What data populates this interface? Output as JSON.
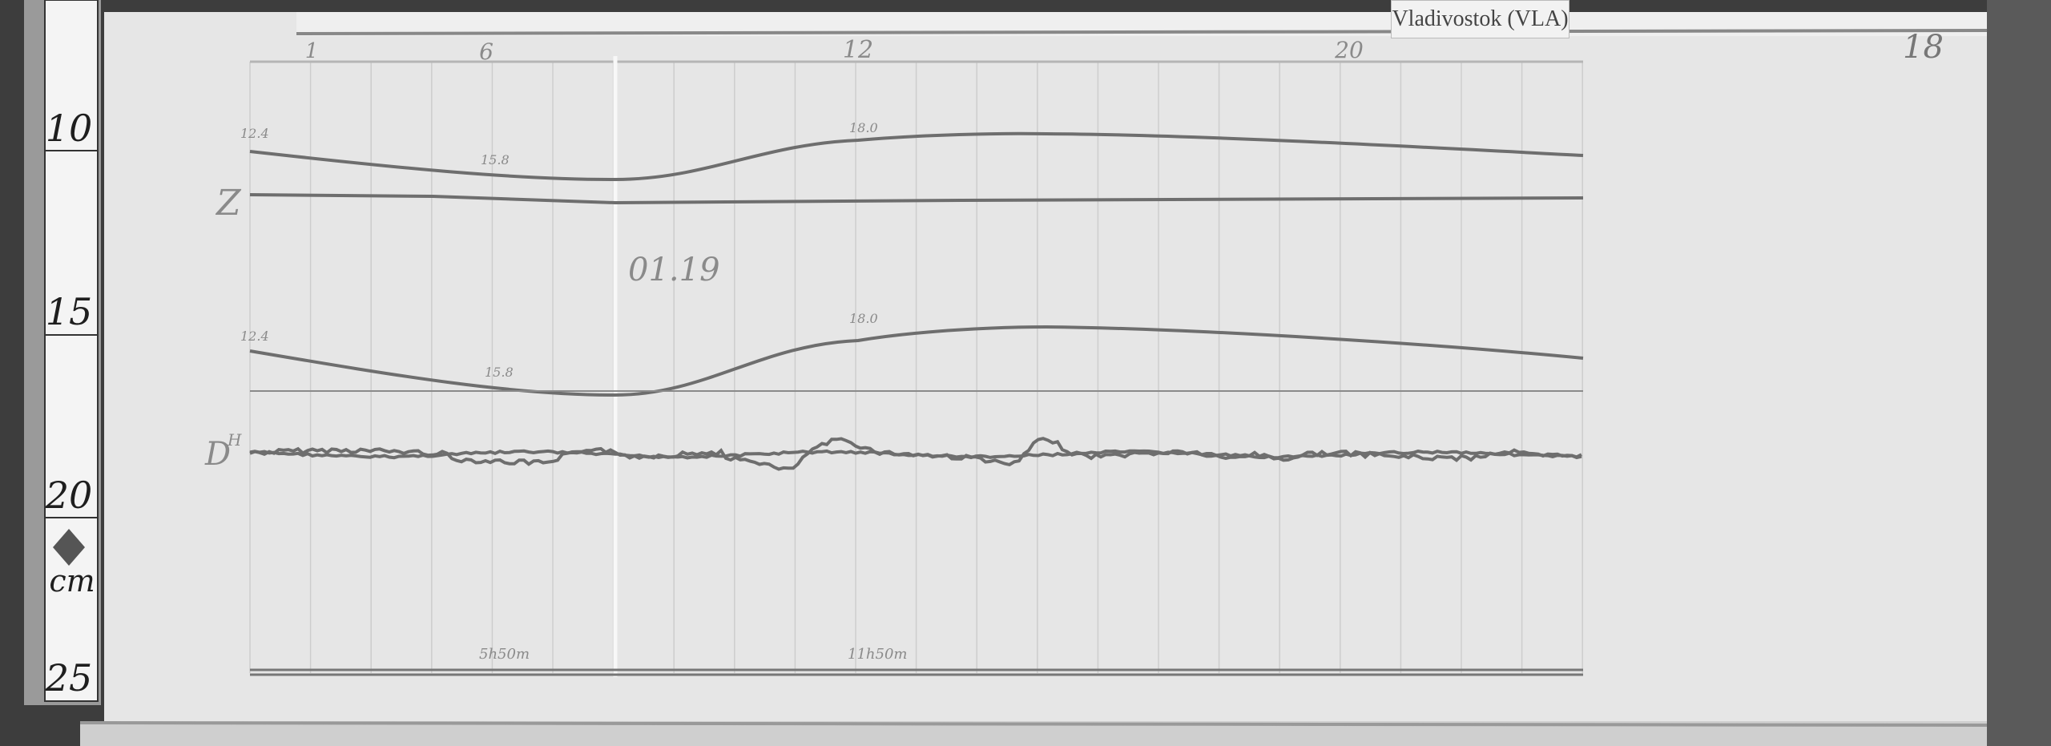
{
  "station_label": "Vladivostok (VLA)",
  "ruler": {
    "marks": [
      "10",
      "15",
      "20",
      "25"
    ],
    "unit": "cm"
  },
  "hour_labels": [
    "1",
    "6",
    "12",
    "20"
  ],
  "annotations": {
    "date": "01.19",
    "z_label": "Z",
    "d_label": "D",
    "h_sup": "H",
    "value_a": "12.4",
    "value_b": "15.8",
    "value_c": "18.0",
    "time_a": "5h50m",
    "time_b": "11h50m",
    "sheet_number": "18"
  },
  "colors": {
    "paper": "#e6e6e6",
    "trace": "#6e6e6e",
    "background": "#3a3a3a"
  }
}
